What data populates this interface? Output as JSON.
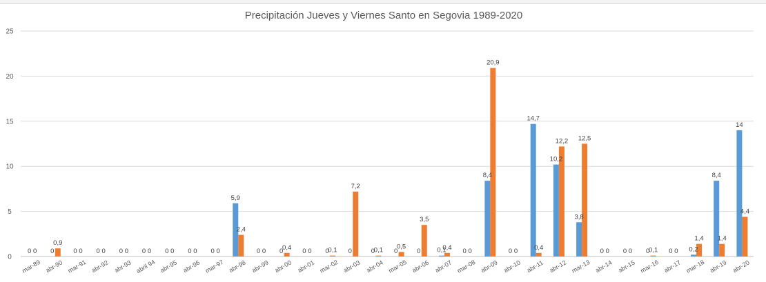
{
  "chart_data": {
    "type": "bar",
    "title": "Precipitación Jueves y Viernes Santo en Segovia 1989-2020",
    "xlabel": "",
    "ylabel": "",
    "ylim": [
      0,
      25
    ],
    "yticks": [
      "0",
      "5",
      "10",
      "15",
      "20",
      "25"
    ],
    "grid": true,
    "legend": "none",
    "categories": [
      "mar-89",
      "abr-90",
      "mar-91",
      "abr-92",
      "abr-93",
      "abril 94",
      "abr-95",
      "abr-96",
      "mar-97",
      "abr-98",
      "abr-99",
      "abr-00",
      "abr-01",
      "mar-02",
      "abr-03",
      "abr-04",
      "mar-05",
      "abr-06",
      "abr-07",
      "mar-08",
      "abr-09",
      "abr-10",
      "abr-11",
      "abr-12",
      "mar-13",
      "abr-14",
      "abr-15",
      "mar-16",
      "abr-17",
      "mar-18",
      "abr-19",
      "abr-20"
    ],
    "series": [
      {
        "color": "#5b9bd5",
        "values": [
          0,
          0,
          0,
          0,
          0,
          0,
          0,
          0,
          0,
          5.9,
          0,
          0,
          0,
          0,
          0,
          0,
          0,
          0,
          0.1,
          0,
          8.4,
          0,
          14.7,
          10.2,
          3.8,
          0,
          0,
          0,
          0,
          0.2,
          8.4,
          14
        ],
        "labels": [
          "0",
          "0",
          "0",
          "0",
          "0",
          "0",
          "0",
          "0",
          "0",
          "5,9",
          "0",
          "0",
          "0",
          "0",
          "0",
          "0",
          "0",
          "0",
          "0,1",
          "0",
          "8,4",
          "0",
          "14,7",
          "10,2",
          "3,8",
          "0",
          "0",
          "0",
          "0",
          "0,2",
          "8,4",
          "14"
        ]
      },
      {
        "color": "#ed7d31",
        "values": [
          0,
          0.9,
          0,
          0,
          0,
          0,
          0,
          0,
          0,
          2.4,
          0,
          0.4,
          0,
          0.1,
          7.2,
          0.1,
          0.5,
          3.5,
          0.4,
          0,
          20.9,
          0,
          0.4,
          12.2,
          12.5,
          0,
          0,
          0.1,
          0,
          1.4,
          1.4,
          4.4
        ],
        "labels": [
          "0",
          "0,9",
          "0",
          "0",
          "0",
          "0",
          "0",
          "0",
          "0",
          "2,4",
          "0",
          "0,4",
          "0",
          "0,1",
          "7,2",
          "0,1",
          "0,5",
          "3,5",
          "0,4",
          "0",
          "20,9",
          "0",
          "0,4",
          "12,2",
          "12,5",
          "0",
          "0",
          "0,1",
          "0",
          "1,4",
          "1,4",
          "4,4"
        ]
      }
    ]
  }
}
